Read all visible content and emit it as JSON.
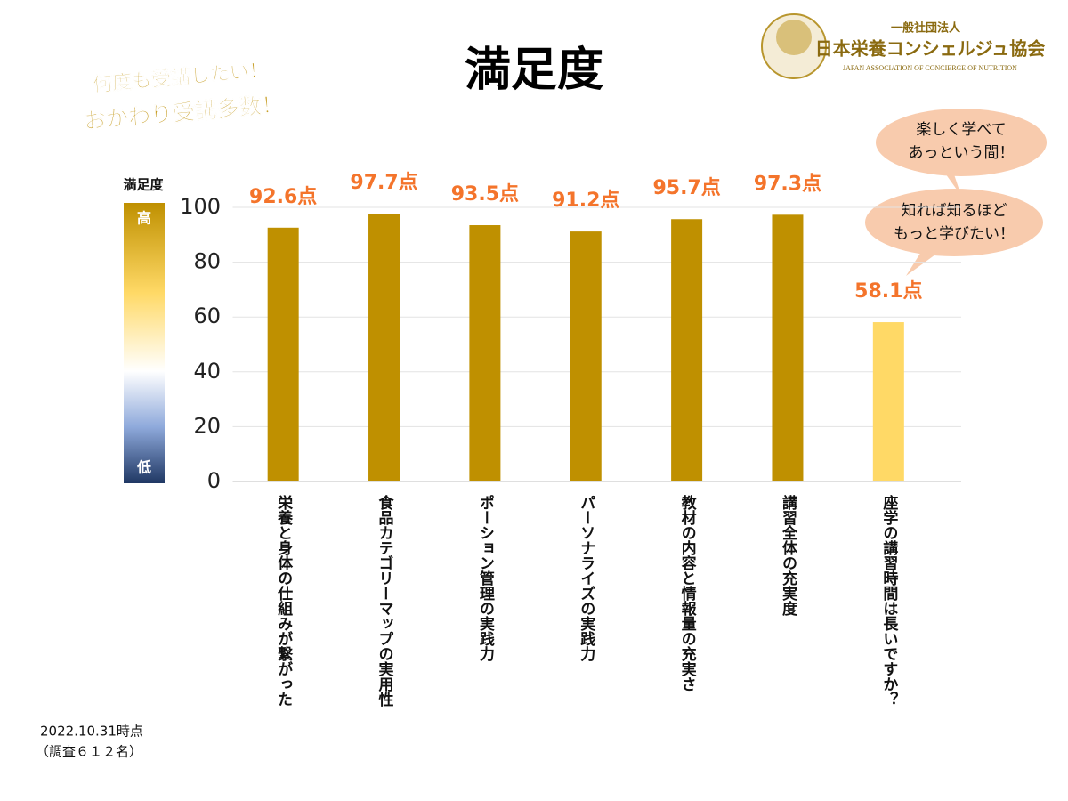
{
  "chart_data": {
    "type": "bar",
    "title": "満足度",
    "headline": [
      "何度も受講したい！",
      "おかわり受講多数！"
    ],
    "logo": {
      "org_type": "一般社団法人",
      "name": "日本栄養コンシェルジュ協会",
      "english": "JAPAN ASSOCIATION OF CONCIERGE OF NUTRITION"
    },
    "colorbar": {
      "title": "満足度",
      "high": "高",
      "low": "低"
    },
    "categories": [
      "栄養と身体の仕組みが繋がった",
      "食品カテゴリーマップの実用性",
      "ポーション管理の実践力",
      "パーソナライズの実践力",
      "教材の内容と情報量の充実さ",
      "講習全体の充実度",
      "座学の講習時間は長いですか？"
    ],
    "values": [
      92.6,
      97.7,
      93.5,
      91.2,
      95.7,
      97.3,
      58.1
    ],
    "value_labels": [
      "92.6点",
      "97.7点",
      "93.5点",
      "91.2点",
      "95.7点",
      "97.3点",
      "58.1点"
    ],
    "colors": [
      "#bf9000",
      "#bf9000",
      "#bf9000",
      "#bf9000",
      "#bf9000",
      "#bf9000",
      "#ffd966"
    ],
    "ylim": [
      0,
      100
    ],
    "yticks": [
      0,
      20,
      40,
      60,
      80,
      100
    ],
    "grid": true,
    "callouts": [
      [
        "楽しく学べて",
        "あっという間！"
      ],
      [
        "知れば知るほど",
        "もっと学びたい！"
      ]
    ],
    "note": [
      "2022.10.31時点",
      "（調査６１２名）"
    ]
  }
}
